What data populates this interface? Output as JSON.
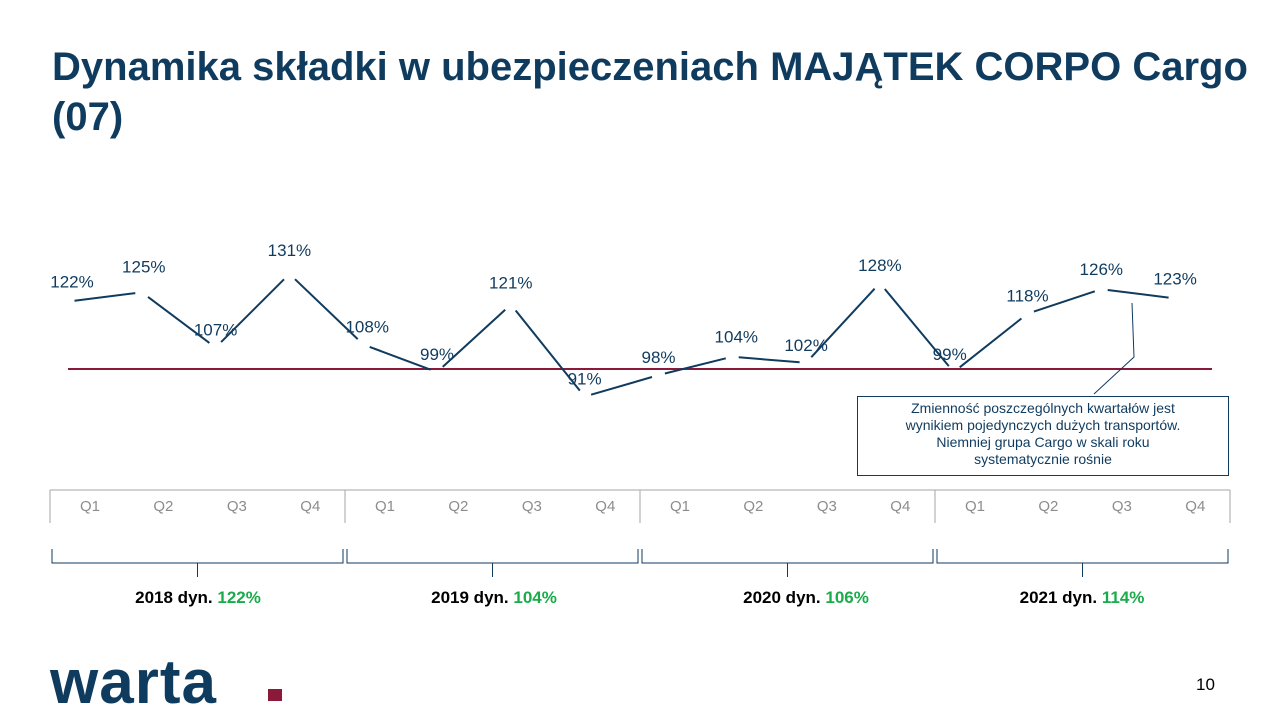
{
  "title": "Dynamika składki w ubezpieczeniach MAJĄTEK CORPO Cargo (07)",
  "chart_data": {
    "type": "line",
    "title": "",
    "xlabel": "",
    "ylabel": "",
    "categories": [
      "Q1",
      "Q2",
      "Q3",
      "Q4",
      "Q1",
      "Q2",
      "Q3",
      "Q4",
      "Q1",
      "Q2",
      "Q3",
      "Q4",
      "Q1",
      "Q2",
      "Q3",
      "Q4"
    ],
    "years": [
      "2018",
      "2019",
      "2020",
      "2021"
    ],
    "series": [
      {
        "values": [
          122,
          125,
          107,
          131,
          108,
          99,
          121,
          91,
          98,
          104,
          102,
          128,
          99,
          118,
          126,
          123
        ]
      }
    ],
    "data_labels": [
      "122%",
      "125%",
      "107%",
      "131%",
      "108%",
      "99%",
      "121%",
      "91%",
      "98%",
      "104%",
      "102%",
      "128%",
      "99%",
      "118%",
      "126%",
      "123%"
    ],
    "reference_line": 100,
    "ylim": [
      85,
      135
    ],
    "colors": {
      "line": "#0f3b5f",
      "reference": "#8b1a3a",
      "growth": "#1aab4b"
    }
  },
  "year_summaries": [
    {
      "label": "2018 dyn.",
      "value": "122%"
    },
    {
      "label": "2019 dyn.",
      "value": "104%"
    },
    {
      "label": "2020 dyn.",
      "value": "106%"
    },
    {
      "label": "2021 dyn.",
      "value": "114%"
    }
  ],
  "note": {
    "lines": [
      "Zmienność poszczególnych kwartałów jest",
      "wynikiem pojedynczych dużych transportów.",
      "Niemniej grupa Cargo w skali roku",
      "systematycznie rośnie"
    ]
  },
  "logo": "warta",
  "page_number": "10"
}
